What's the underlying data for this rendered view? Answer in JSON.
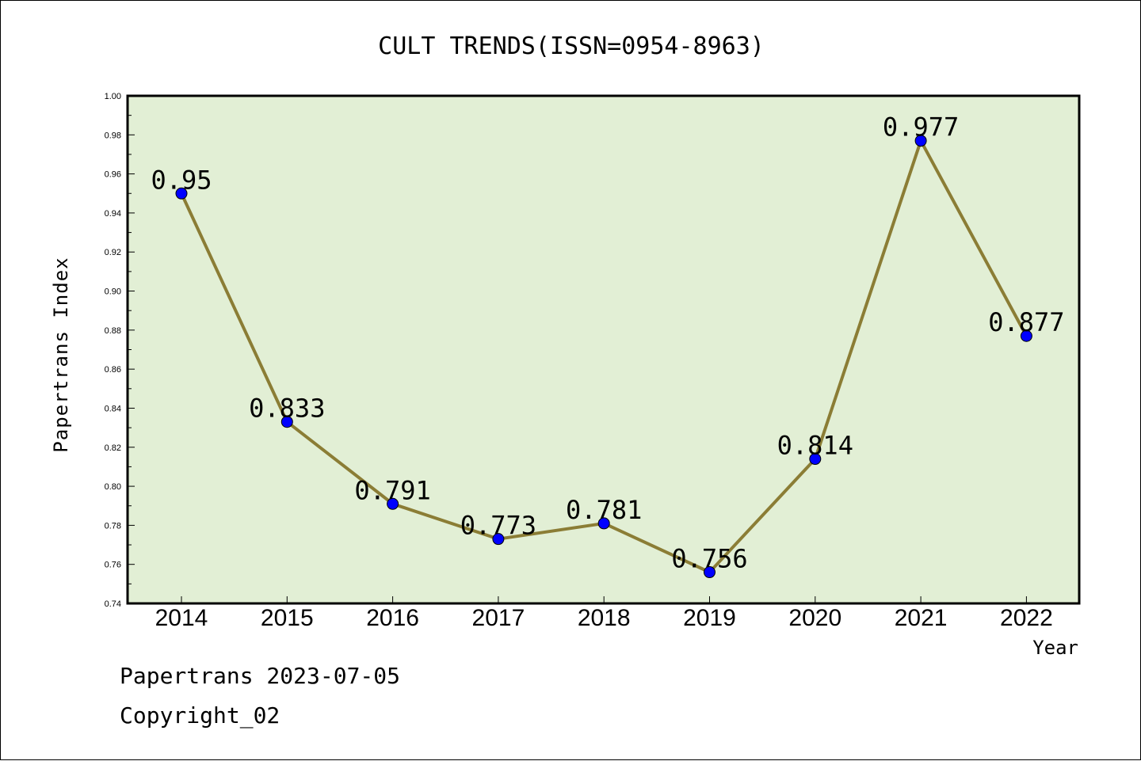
{
  "chart_data": {
    "type": "line",
    "title": "CULT TRENDS(ISSN=0954-8963)",
    "xlabel": "Year",
    "ylabel": "Papertrans Index",
    "categories": [
      "2014",
      "2015",
      "2016",
      "2017",
      "2018",
      "2019",
      "2020",
      "2021",
      "2022"
    ],
    "series": [
      {
        "values": [
          0.95,
          0.833,
          0.791,
          0.773,
          0.781,
          0.756,
          0.814,
          0.977,
          0.877
        ],
        "labels": [
          "0.95",
          "0.833",
          "0.791",
          "0.773",
          "0.781",
          "0.756",
          "0.814",
          "0.977",
          "0.877"
        ]
      }
    ],
    "ylim": [
      0.74,
      1.0
    ],
    "yticks": [
      "0.74",
      "0.76",
      "0.78",
      "0.80",
      "0.82",
      "0.84",
      "0.86",
      "0.88",
      "0.90",
      "0.92",
      "0.94",
      "0.96",
      "0.98",
      "1.00"
    ],
    "grid": false,
    "colors": {
      "plot_background": "#e2efd5",
      "line": "#8b7d35",
      "marker": "#0000ff"
    }
  },
  "footer": {
    "line1": "Papertrans 2023-07-05",
    "line2": "Copyright_02"
  }
}
